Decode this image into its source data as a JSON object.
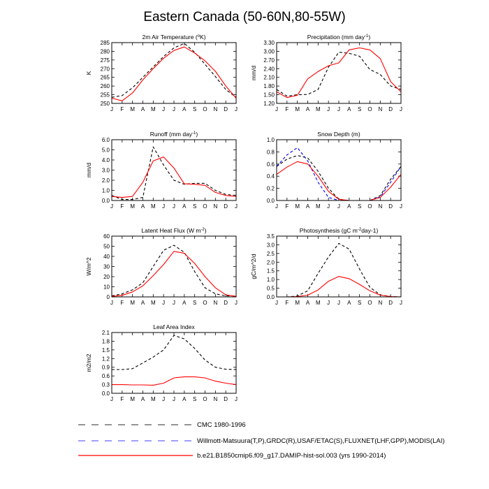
{
  "page": {
    "title": "Eastern Canada (50-60N,80-55W)"
  },
  "months": [
    "J",
    "F",
    "M",
    "A",
    "M",
    "J",
    "J",
    "A",
    "S",
    "O",
    "N",
    "D",
    "J"
  ],
  "colors": {
    "cmc": "#000000",
    "obs": "#0000ff",
    "model": "#ff0000"
  },
  "legend": [
    {
      "key": "cmc",
      "label": "CMC 1980-1996",
      "style": "dashed"
    },
    {
      "key": "obs",
      "label": "Willmott-Matsuura(T,P),GRDC(R),USAF/ETAC(S),FLUXNET(LHF,GPP),MODIS(LAI)",
      "style": "dashed"
    },
    {
      "key": "model",
      "label": "b.e21.B1850cmip6.f09_g17.DAMIP-hist-sol.003 (yrs 1990-2014)",
      "style": "solid"
    }
  ],
  "chart_data": [
    {
      "type": "line",
      "id": "tas",
      "title_main": "2m Air Temperature (",
      "title_sup": "o",
      "title_end": "K)",
      "ylabel": "K",
      "ylim": [
        250,
        285
      ],
      "yticks": [
        "250",
        "255",
        "260",
        "265",
        "270",
        "275",
        "280",
        "285"
      ],
      "x": [
        0,
        1,
        2,
        3,
        4,
        5,
        6,
        7,
        8,
        9,
        10,
        11,
        12
      ],
      "series": [
        {
          "key": "cmc",
          "style": "dashed",
          "values": [
            253.5,
            254.5,
            259,
            265,
            271,
            277,
            282,
            284.5,
            279.5,
            272.5,
            265.5,
            258,
            253.5
          ]
        },
        {
          "key": "model",
          "style": "solid",
          "values": [
            253,
            251.5,
            256,
            263.5,
            270,
            276,
            280.5,
            282.5,
            279,
            274.5,
            268.5,
            260,
            253
          ]
        }
      ]
    },
    {
      "type": "line",
      "id": "pr",
      "title_main": "Precipitation (mm day",
      "title_sup": "-1",
      "title_end": ")",
      "ylabel": "mm/d",
      "ylim": [
        1.2,
        3.3
      ],
      "yticks": [
        "1.20",
        "1.50",
        "1.80",
        "2.10",
        "2.40",
        "2.70",
        "3.00",
        "3.30"
      ],
      "x": [
        0,
        1,
        2,
        3,
        4,
        5,
        6,
        7,
        8,
        9,
        10,
        11,
        12
      ],
      "series": [
        {
          "key": "cmc",
          "style": "dashed",
          "values": [
            1.68,
            1.45,
            1.5,
            1.51,
            1.68,
            2.45,
            2.97,
            2.93,
            2.83,
            2.37,
            2.2,
            1.8,
            1.68
          ]
        },
        {
          "key": "model",
          "style": "solid",
          "values": [
            1.6,
            1.4,
            1.48,
            2.05,
            2.3,
            2.5,
            2.6,
            3.05,
            3.12,
            3.05,
            2.75,
            1.95,
            1.6
          ]
        }
      ]
    },
    {
      "type": "line",
      "id": "runoff",
      "title_main": "Runoff (mm day",
      "title_sup": "-1",
      "title_end": ")",
      "ylabel": "mm/d",
      "ylim": [
        0,
        6
      ],
      "yticks": [
        "0.0",
        "1.0",
        "2.0",
        "3.0",
        "4.0",
        "5.0",
        "6.0"
      ],
      "x": [
        0,
        1,
        2,
        3,
        4,
        5,
        6,
        7,
        8,
        9,
        10,
        11,
        12
      ],
      "series": [
        {
          "key": "cmc",
          "style": "dashed",
          "values": [
            0.5,
            0.1,
            0.1,
            0.3,
            5.3,
            3.5,
            2.0,
            1.6,
            1.7,
            1.7,
            1.0,
            0.6,
            0.5
          ]
        },
        {
          "key": "model",
          "style": "solid",
          "values": [
            0.4,
            0.3,
            0.4,
            1.8,
            3.9,
            4.3,
            3.2,
            1.65,
            1.6,
            1.5,
            0.8,
            0.5,
            0.4
          ]
        }
      ]
    },
    {
      "type": "line",
      "id": "snowdepth",
      "title_main": "Snow Depth (m)",
      "title_sup": "",
      "title_end": "",
      "ylabel": "",
      "ylim": [
        0,
        1
      ],
      "yticks": [
        "0.0",
        "0.2",
        "0.4",
        "0.6",
        "0.8",
        "1.0"
      ],
      "x": [
        0,
        1,
        2,
        3,
        4,
        5,
        6,
        7,
        8,
        9,
        10,
        11,
        12
      ],
      "series": [
        {
          "key": "cmc",
          "style": "dashed",
          "values": [
            0.56,
            0.68,
            0.74,
            0.7,
            0.48,
            0.2,
            0.02,
            0.0,
            0.0,
            0.0,
            0.08,
            0.35,
            0.56
          ]
        },
        {
          "key": "obs",
          "style": "dashed",
          "values": [
            0.56,
            0.75,
            0.87,
            0.65,
            0.3,
            0.05,
            0.0,
            0.0,
            0.0,
            0.0,
            0.06,
            0.3,
            0.56
          ]
        },
        {
          "key": "model",
          "style": "solid",
          "values": [
            0.43,
            0.55,
            0.64,
            0.6,
            0.4,
            0.15,
            0.02,
            0.0,
            0.0,
            0.0,
            0.05,
            0.22,
            0.43
          ]
        }
      ]
    },
    {
      "type": "line",
      "id": "lhf",
      "title_main": "Latent Heat Flux (W m",
      "title_sup": "-2",
      "title_end": ")",
      "ylabel": "W/m^2",
      "ylim": [
        0,
        60
      ],
      "yticks": [
        "0",
        "10",
        "20",
        "30",
        "40",
        "50",
        "60"
      ],
      "x": [
        0,
        1,
        2,
        3,
        4,
        5,
        6,
        7,
        8,
        9,
        10,
        11,
        12
      ],
      "series": [
        {
          "key": "cmc",
          "style": "dashed",
          "values": [
            1,
            3,
            7,
            14,
            30,
            46,
            51,
            44,
            25,
            9,
            3,
            1,
            1
          ]
        },
        {
          "key": "model",
          "style": "solid",
          "values": [
            0.5,
            1.5,
            5,
            11,
            21,
            32,
            45,
            43,
            33,
            20,
            9,
            2,
            0.5
          ]
        }
      ]
    },
    {
      "type": "line",
      "id": "gpp",
      "title_main": "Photosynthesis (gC m",
      "title_sup": "-2",
      "title_end": "day-1)",
      "ylabel": "gC/m^2/d",
      "ylim": [
        0,
        3.5
      ],
      "yticks": [
        "0.0",
        "0.5",
        "1.0",
        "1.5",
        "2.0",
        "2.5",
        "3.0",
        "3.5"
      ],
      "x": [
        0,
        1,
        2,
        3,
        4,
        5,
        6,
        7,
        8,
        9,
        10,
        11,
        12
      ],
      "series": [
        {
          "key": "cmc",
          "style": "dashed",
          "values": [
            0.0,
            0.0,
            0.05,
            0.35,
            1.35,
            2.3,
            3.08,
            2.75,
            1.6,
            0.55,
            0.12,
            0.02,
            0.0
          ]
        },
        {
          "key": "model",
          "style": "solid",
          "values": [
            0.0,
            0.0,
            0.02,
            0.1,
            0.4,
            0.9,
            1.18,
            1.05,
            0.72,
            0.35,
            0.1,
            0.02,
            0.0
          ]
        }
      ]
    },
    {
      "type": "line",
      "id": "lai",
      "title_main": "Leaf Area Index",
      "title_sup": "",
      "title_end": "",
      "ylabel": "m2/m2",
      "ylim": [
        0,
        2.1
      ],
      "yticks": [
        "0.0",
        "0.3",
        "0.6",
        "0.9",
        "1.2",
        "1.5",
        "1.8",
        "2.1"
      ],
      "x": [
        0,
        1,
        2,
        3,
        4,
        5,
        6,
        7,
        8,
        9,
        10,
        11,
        12
      ],
      "series": [
        {
          "key": "cmc",
          "style": "dashed",
          "values": [
            0.82,
            0.82,
            0.85,
            1.05,
            1.25,
            1.5,
            2.0,
            1.88,
            1.55,
            1.15,
            0.9,
            0.83,
            0.82
          ]
        },
        {
          "key": "model",
          "style": "solid",
          "values": [
            0.3,
            0.3,
            0.29,
            0.29,
            0.28,
            0.35,
            0.53,
            0.57,
            0.57,
            0.53,
            0.42,
            0.35,
            0.3
          ]
        }
      ]
    }
  ]
}
